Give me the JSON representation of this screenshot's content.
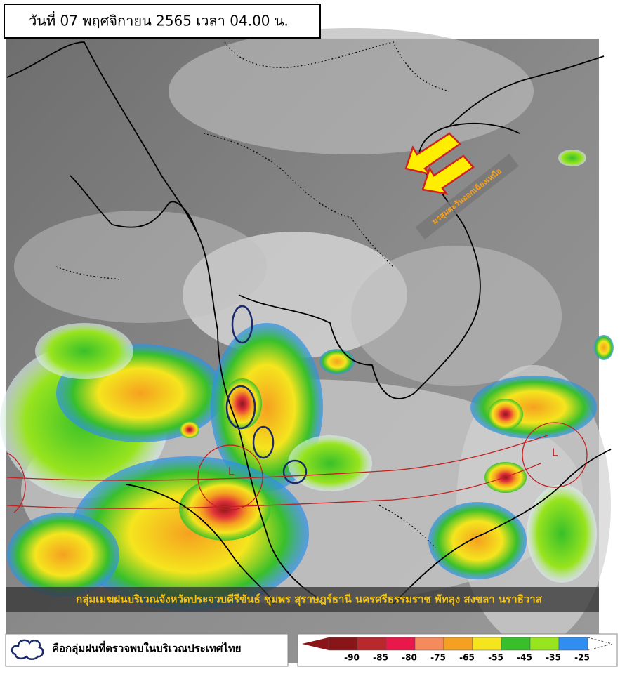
{
  "header": {
    "title": "วันที่ 07 พฤศจิกายน 2565 เวลา 04.00 น."
  },
  "map": {
    "monsoon_label": "มรสุมตะวันออกเฉียงเหนือ",
    "low_labels": [
      "L",
      "L"
    ],
    "banner": "กลุ่มเมฆฝนบริเวณจังหวัดประจวบคีรีขันธ์ ชุมพร สุราษฎร์ธานี นครศรีธรรมราช พัทลุง สงขลา นราธิวาส"
  },
  "legend": {
    "text": "คือกลุ่มฝนที่ตรวจพบในบริเวณประเทศไทย"
  },
  "colorbar": {
    "ticks": [
      -90,
      -85,
      -80,
      -75,
      -65,
      -55,
      -45,
      -35,
      -25
    ],
    "colors": [
      "#8a1518",
      "#b8282c",
      "#e8184a",
      "#f58a5a",
      "#f5a020",
      "#f5e51e",
      "#38c02a",
      "#98e41e",
      "#2f8ef0"
    ]
  }
}
